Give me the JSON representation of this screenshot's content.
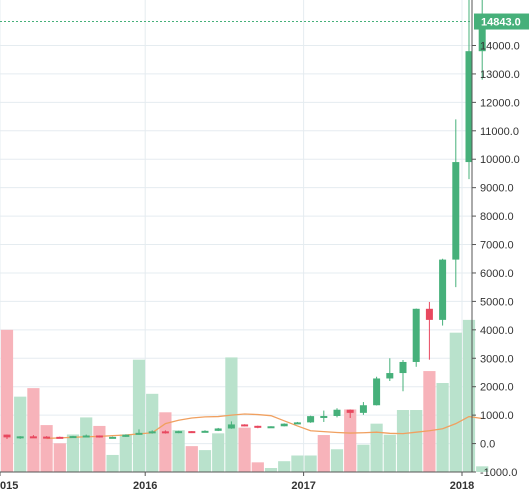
{
  "chart_data": {
    "type": "candlestick",
    "title": "",
    "xlabel": "",
    "ylabel": "",
    "interval": "monthly",
    "ylim": [
      -1000,
      15600
    ],
    "y_ticks": [
      -1000,
      0,
      1000,
      2000,
      3000,
      4000,
      5000,
      6000,
      7000,
      8000,
      9000,
      10000,
      11000,
      12000,
      13000,
      14000
    ],
    "x_ticks": [
      {
        "label": "015",
        "index": 0
      },
      {
        "label": "2016",
        "index": 11
      },
      {
        "label": "2017",
        "index": 23
      },
      {
        "label": "2018",
        "index": 35
      }
    ],
    "last_price": 14843.0,
    "last_price_label": "14843.0",
    "grid": true,
    "colors": {
      "up": "#46b07a",
      "down": "#e8485f",
      "up_volume": "#b9e2cc",
      "down_volume": "#f7b3ba",
      "moving_average": "#f0a060",
      "price_line": "#46b07a",
      "grid": "#e5ecf0"
    },
    "candles": [
      {
        "open": 315,
        "high": 320,
        "low": 160,
        "close": 218
      },
      {
        "open": 218,
        "high": 262,
        "low": 166,
        "close": 254
      },
      {
        "open": 254,
        "high": 300,
        "low": 240,
        "close": 244
      },
      {
        "open": 244,
        "high": 261,
        "low": 215,
        "close": 236
      },
      {
        "open": 236,
        "high": 245,
        "low": 225,
        "close": 230
      },
      {
        "open": 230,
        "high": 269,
        "low": 223,
        "close": 263
      },
      {
        "open": 263,
        "high": 317,
        "low": 250,
        "close": 284
      },
      {
        "open": 284,
        "high": 286,
        "low": 210,
        "close": 230
      },
      {
        "open": 230,
        "high": 245,
        "low": 226,
        "close": 236
      },
      {
        "open": 236,
        "high": 325,
        "low": 235,
        "close": 314
      },
      {
        "open": 314,
        "high": 500,
        "low": 310,
        "close": 377
      },
      {
        "open": 377,
        "high": 465,
        "low": 350,
        "close": 430
      },
      {
        "open": 430,
        "high": 465,
        "low": 350,
        "close": 369
      },
      {
        "open": 369,
        "high": 448,
        "low": 365,
        "close": 437
      },
      {
        "open": 437,
        "high": 440,
        "low": 370,
        "close": 416
      },
      {
        "open": 416,
        "high": 470,
        "low": 410,
        "close": 448
      },
      {
        "open": 448,
        "high": 550,
        "low": 440,
        "close": 531
      },
      {
        "open": 531,
        "high": 780,
        "low": 520,
        "close": 673
      },
      {
        "open": 673,
        "high": 680,
        "low": 600,
        "close": 624
      },
      {
        "open": 624,
        "high": 630,
        "low": 540,
        "close": 573
      },
      {
        "open": 573,
        "high": 610,
        "low": 570,
        "close": 608
      },
      {
        "open": 608,
        "high": 710,
        "low": 605,
        "close": 700
      },
      {
        "open": 700,
        "high": 760,
        "low": 690,
        "close": 745
      },
      {
        "open": 745,
        "high": 980,
        "low": 730,
        "close": 965
      },
      {
        "open": 965,
        "high": 1160,
        "low": 760,
        "close": 970
      },
      {
        "open": 970,
        "high": 1240,
        "low": 920,
        "close": 1190
      },
      {
        "open": 1190,
        "high": 1200,
        "low": 900,
        "close": 1080
      },
      {
        "open": 1080,
        "high": 1460,
        "low": 1010,
        "close": 1348
      },
      {
        "open": 1348,
        "high": 2350,
        "low": 1340,
        "close": 2290
      },
      {
        "open": 2290,
        "high": 3000,
        "low": 2200,
        "close": 2480
      },
      {
        "open": 2480,
        "high": 2940,
        "low": 1840,
        "close": 2870
      },
      {
        "open": 2870,
        "high": 4750,
        "low": 2700,
        "close": 4740
      },
      {
        "open": 4740,
        "high": 4980,
        "low": 2950,
        "close": 4350
      },
      {
        "open": 4350,
        "high": 6500,
        "low": 4150,
        "close": 6470
      },
      {
        "open": 6470,
        "high": 11400,
        "low": 5500,
        "close": 9900
      },
      {
        "open": 9900,
        "high": 19800,
        "low": 9300,
        "close": 13800
      },
      {
        "open": 13800,
        "high": 17300,
        "low": 12800,
        "close": 14843
      }
    ],
    "volume": [
      {
        "value": 4000,
        "direction": "down"
      },
      {
        "value": 1650,
        "direction": "up"
      },
      {
        "value": 1950,
        "direction": "down"
      },
      {
        "value": 650,
        "direction": "down"
      },
      {
        "value": 10,
        "direction": "down"
      },
      {
        "value": 320,
        "direction": "up"
      },
      {
        "value": 920,
        "direction": "up"
      },
      {
        "value": 620,
        "direction": "down"
      },
      {
        "value": -400,
        "direction": "up"
      },
      {
        "value": 320,
        "direction": "up"
      },
      {
        "value": 2950,
        "direction": "up"
      },
      {
        "value": 1750,
        "direction": "up"
      },
      {
        "value": 1100,
        "direction": "down"
      },
      {
        "value": 470,
        "direction": "up"
      },
      {
        "value": -90,
        "direction": "down"
      },
      {
        "value": -230,
        "direction": "up"
      },
      {
        "value": 360,
        "direction": "up"
      },
      {
        "value": 3030,
        "direction": "up"
      },
      {
        "value": 560,
        "direction": "down"
      },
      {
        "value": -660,
        "direction": "down"
      },
      {
        "value": -860,
        "direction": "up"
      },
      {
        "value": -620,
        "direction": "up"
      },
      {
        "value": -420,
        "direction": "up"
      },
      {
        "value": -420,
        "direction": "up"
      },
      {
        "value": 300,
        "direction": "down"
      },
      {
        "value": -200,
        "direction": "up"
      },
      {
        "value": 1200,
        "direction": "down"
      },
      {
        "value": -40,
        "direction": "up"
      },
      {
        "value": 700,
        "direction": "up"
      },
      {
        "value": 310,
        "direction": "up"
      },
      {
        "value": 1180,
        "direction": "up"
      },
      {
        "value": 1180,
        "direction": "up"
      },
      {
        "value": 2550,
        "direction": "down"
      },
      {
        "value": 2130,
        "direction": "up"
      },
      {
        "value": 3900,
        "direction": "up"
      },
      {
        "value": 4350,
        "direction": "up"
      },
      {
        "value": -800,
        "direction": "up"
      }
    ],
    "moving_average": [
      null,
      null,
      null,
      180,
      200,
      220,
      240,
      250,
      280,
      300,
      340,
      380,
      700,
      820,
      900,
      940,
      950,
      1000,
      1040,
      1020,
      980,
      800,
      620,
      450,
      420,
      390,
      370,
      380,
      400,
      360,
      350,
      400,
      450,
      520,
      700,
      950,
      880
    ]
  }
}
